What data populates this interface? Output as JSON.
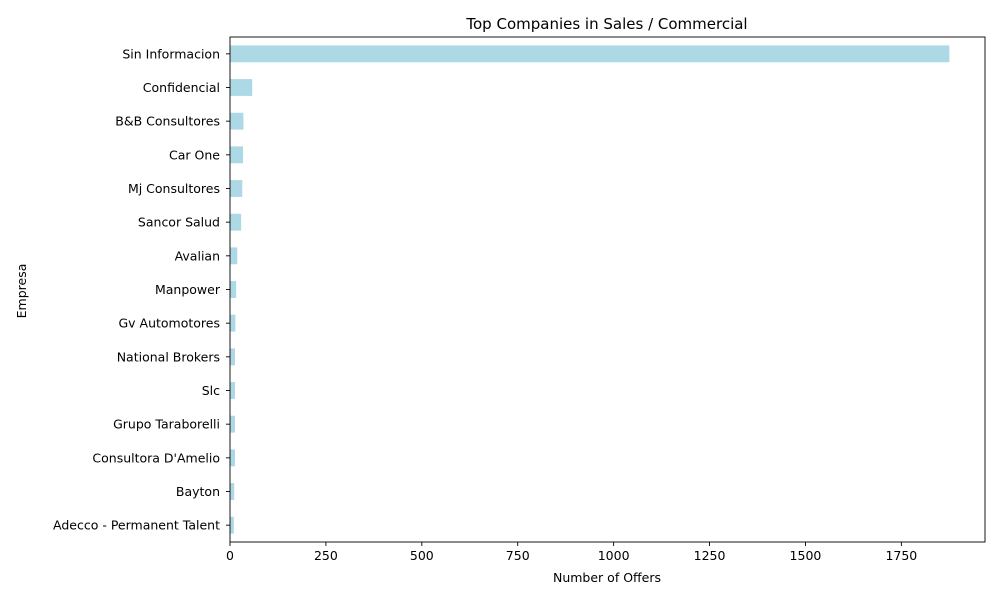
{
  "chart_data": {
    "type": "bar",
    "orientation": "horizontal",
    "title": "Top Companies in Sales / Commercial",
    "xlabel": "Number of Offers",
    "ylabel": "Empresa",
    "categories": [
      "Sin Informacion",
      "Confidencial",
      "B&B Consultores",
      "Car One",
      "Mj Consultores",
      "Sancor Salud",
      "Avalian",
      "Manpower",
      "Gv Automotores",
      "National Brokers",
      "Slc",
      "Grupo Taraborelli",
      "Consultora D'Amelio",
      "Bayton",
      "Adecco - Permanent Talent"
    ],
    "values": [
      1875,
      58,
      35,
      34,
      32,
      29,
      19,
      16,
      14,
      13,
      13,
      13,
      13,
      11,
      10
    ],
    "xlim": [
      0,
      1968
    ],
    "xticks": [
      0,
      250,
      500,
      750,
      1000,
      1250,
      1500,
      1750
    ],
    "bar_color": "#add8e6",
    "grid": false,
    "legend": "none"
  }
}
